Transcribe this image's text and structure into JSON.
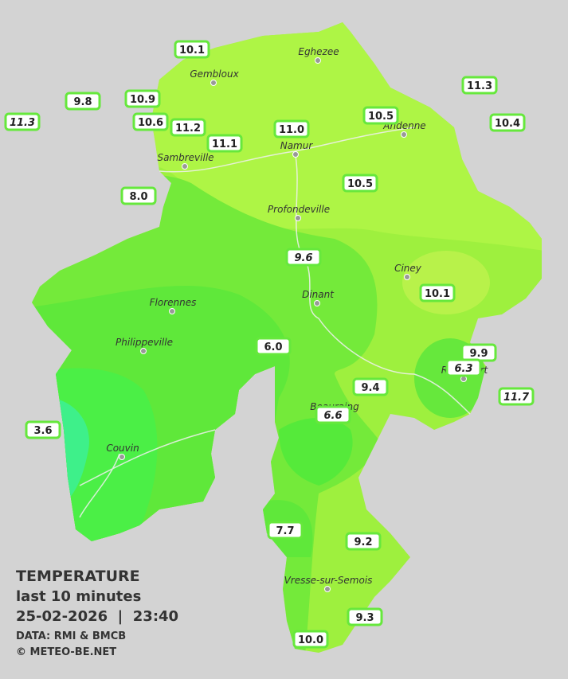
{
  "legend": {
    "title": "TEMPERATURE",
    "subtitle": "last 10 minutes",
    "datetime": "25-02-2026  |  23:40",
    "source": "DATA: RMI & BMCB",
    "credit": "© METEO-BE.NET"
  },
  "cities": [
    "Eghezee",
    "Gembloux",
    "Andenne",
    "Namur",
    "Sambreville",
    "Profondeville",
    "Ciney",
    "Dinant",
    "Florennes",
    "Philippeville",
    "Rochefort",
    "Beauraing",
    "Couvin",
    "Vresse-sur-Semois"
  ],
  "stations": [
    "10.1",
    "9.8",
    "10.9",
    "11.3",
    "10.6",
    "11.2",
    "11.1",
    "11.0",
    "10.5",
    "11.3",
    "10.4",
    "10.5",
    "8.0",
    "9.6",
    "10.1",
    "6.0",
    "9.9",
    "6.3",
    "9.4",
    "6.6",
    "11.7",
    "3.6",
    "7.7",
    "9.2",
    "9.3",
    "10.0"
  ]
}
